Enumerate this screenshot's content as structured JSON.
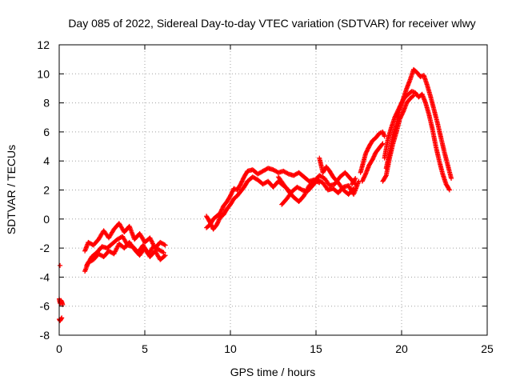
{
  "chart_data": {
    "type": "scatter",
    "title": "Day 085 of 2022, Sidereal Day-to-day VTEC variation (SDTVAR) for receiver wlwy",
    "xlabel": "GPS time / hours",
    "ylabel": "SDTVAR / TECUs",
    "xlim": [
      0,
      25
    ],
    "ylim": [
      -8,
      12
    ],
    "xticks": [
      0,
      5,
      10,
      15,
      20,
      25
    ],
    "yticks": [
      -8,
      -6,
      -4,
      -2,
      0,
      2,
      4,
      6,
      8,
      10,
      12
    ],
    "xtick_labels": [
      "0",
      "5",
      "10",
      "15",
      "20",
      "25"
    ],
    "ytick_labels": [
      "-8",
      "-6",
      "-4",
      "-2",
      "0",
      "2",
      "4",
      "6",
      "8",
      "10",
      "12"
    ],
    "grid": true,
    "marker": "+",
    "color": "#ff0000",
    "series": [
      {
        "name": "SDTVAR",
        "segments": [
          {
            "x": [
              0.0,
              0.05,
              0.1,
              0.15,
              0.2
            ],
            "y": [
              -5.5,
              -5.8,
              -5.6,
              -5.7,
              -5.9
            ]
          },
          {
            "x": [
              0.0,
              0.05,
              0.1,
              0.15
            ],
            "y": [
              -6.9,
              -7.0,
              -6.9,
              -6.8
            ]
          },
          {
            "x": [
              0.05
            ],
            "y": [
              -3.2
            ]
          },
          {
            "x": [
              1.5,
              1.7,
              2.0,
              2.3,
              2.6,
              2.9,
              3.2,
              3.5,
              3.8,
              4.1,
              4.4,
              4.7,
              5.0,
              5.3,
              5.6,
              5.9,
              6.2
            ],
            "y": [
              -2.2,
              -1.6,
              -1.8,
              -1.4,
              -0.8,
              -1.3,
              -0.7,
              -0.3,
              -0.9,
              -0.5,
              -1.4,
              -1.0,
              -1.6,
              -1.3,
              -2.0,
              -1.6,
              -1.8
            ]
          },
          {
            "x": [
              1.5,
              1.7,
              2.0,
              2.3,
              2.6,
              2.9,
              3.2,
              3.5,
              3.8,
              4.1,
              4.4,
              4.7,
              5.0,
              5.3,
              5.6,
              5.9,
              6.2
            ],
            "y": [
              -3.6,
              -3.0,
              -2.8,
              -2.4,
              -2.6,
              -2.2,
              -2.4,
              -1.7,
              -2.0,
              -1.6,
              -2.1,
              -2.5,
              -2.0,
              -2.6,
              -2.2,
              -2.8,
              -2.5
            ]
          },
          {
            "x": [
              1.6,
              1.9,
              2.2,
              2.5,
              2.8,
              3.1,
              3.4,
              3.7,
              4.0,
              4.3,
              4.6,
              4.9,
              5.2,
              5.5,
              5.8,
              6.1
            ],
            "y": [
              -3.2,
              -2.6,
              -2.3,
              -1.9,
              -2.0,
              -1.7,
              -1.4,
              -1.2,
              -1.8,
              -1.9,
              -2.3,
              -1.8,
              -2.4,
              -1.9,
              -2.1,
              -2.3
            ]
          },
          {
            "x": [
              8.6,
              8.8,
              9.0,
              9.2,
              9.4,
              9.6,
              9.8,
              10.0,
              10.2,
              10.4,
              10.6,
              10.8,
              11.0,
              11.3,
              11.6,
              11.9,
              12.2,
              12.5,
              12.8,
              13.1,
              13.4,
              13.7,
              14.0,
              14.3,
              14.6,
              14.9,
              15.2
            ],
            "y": [
              -0.6,
              -0.4,
              0.0,
              0.2,
              0.4,
              0.9,
              1.2,
              1.6,
              2.1,
              2.0,
              2.4,
              2.9,
              3.3,
              3.4,
              3.1,
              3.3,
              3.5,
              3.4,
              3.2,
              3.3,
              3.1,
              3.0,
              3.2,
              2.9,
              2.6,
              2.7,
              2.5
            ]
          },
          {
            "x": [
              8.6,
              8.8,
              9.0,
              9.2,
              9.4,
              9.6,
              9.8,
              10.0,
              10.2,
              10.4,
              10.6,
              10.8,
              11.0,
              11.3,
              11.6,
              11.9,
              12.2,
              12.5,
              12.8,
              13.1,
              13.4
            ],
            "y": [
              0.2,
              -0.2,
              -0.7,
              -0.4,
              0.1,
              0.3,
              0.7,
              1.0,
              1.4,
              1.6,
              1.9,
              2.2,
              2.6,
              2.9,
              2.7,
              2.4,
              2.6,
              2.2,
              2.6,
              2.3,
              2.0
            ]
          },
          {
            "x": [
              12.8,
              13.1,
              13.4,
              13.7,
              14.0,
              14.3,
              14.6,
              14.9,
              15.2,
              15.5,
              15.8,
              16.1,
              16.4,
              16.7,
              17.0,
              17.3
            ],
            "y": [
              2.9,
              2.4,
              1.9,
              1.5,
              1.2,
              1.6,
              2.3,
              2.6,
              3.0,
              2.8,
              2.3,
              2.4,
              2.9,
              3.2,
              2.8,
              2.4
            ]
          },
          {
            "x": [
              13.0,
              13.3,
              13.6,
              13.9,
              14.2,
              14.5,
              14.8,
              15.1,
              15.4,
              15.7,
              16.0,
              16.3,
              16.6,
              16.9,
              17.2,
              17.5
            ],
            "y": [
              1.0,
              1.4,
              1.9,
              2.2,
              2.0,
              1.9,
              2.3,
              2.7,
              2.5,
              2.0,
              2.1,
              1.8,
              2.2,
              2.3,
              1.7,
              2.6
            ]
          },
          {
            "x": [
              15.2,
              15.4,
              15.6,
              15.8,
              16.0,
              16.3,
              16.6,
              16.9,
              17.2
            ],
            "y": [
              4.2,
              3.2,
              3.6,
              3.3,
              2.9,
              2.5,
              2.0,
              1.7,
              2.1
            ]
          },
          {
            "x": [
              17.1,
              17.3
            ],
            "y": [
              2.4,
              2.8
            ]
          },
          {
            "x": [
              17.6,
              17.9,
              18.1,
              18.3,
              18.5,
              18.7,
              18.9,
              19.0
            ],
            "y": [
              3.2,
              4.5,
              5.0,
              5.4,
              5.6,
              5.9,
              6.0,
              5.7
            ]
          },
          {
            "x": [
              17.7,
              17.9,
              18.1,
              18.3,
              18.5,
              18.7,
              18.9
            ],
            "y": [
              2.6,
              3.1,
              3.7,
              4.1,
              4.6,
              4.9,
              5.2
            ]
          },
          {
            "x": [
              19.0,
              19.2,
              19.4,
              19.6,
              19.8,
              20.0,
              20.2,
              20.4,
              20.6,
              20.8,
              21.0,
              21.2,
              21.4,
              21.6,
              21.8,
              22.0,
              22.2,
              22.4,
              22.6,
              22.8
            ],
            "y": [
              4.2,
              5.5,
              6.3,
              7.0,
              7.5,
              8.0,
              8.4,
              8.6,
              8.8,
              8.7,
              8.4,
              8.6,
              8.0,
              7.2,
              6.2,
              5.0,
              4.0,
              3.1,
              2.4,
              2.0
            ]
          },
          {
            "x": [
              19.1,
              19.3,
              19.5,
              19.7,
              19.9,
              20.1,
              20.3,
              20.5,
              20.7,
              20.9,
              21.1,
              21.3,
              21.5,
              21.7,
              21.9,
              22.1,
              22.3,
              22.5,
              22.7,
              22.9
            ],
            "y": [
              3.5,
              4.6,
              5.8,
              6.5,
              7.6,
              8.3,
              9.0,
              9.6,
              10.3,
              10.1,
              9.8,
              9.9,
              9.2,
              8.4,
              7.5,
              6.6,
              5.6,
              4.6,
              3.7,
              2.8
            ]
          },
          {
            "x": [
              18.9,
              19.1,
              19.3,
              19.5,
              19.7,
              19.9,
              20.1,
              20.3,
              20.5,
              20.7
            ],
            "y": [
              2.6,
              3.0,
              4.2,
              5.2,
              6.0,
              6.9,
              7.4,
              8.0,
              8.3,
              8.5
            ]
          }
        ]
      }
    ]
  }
}
